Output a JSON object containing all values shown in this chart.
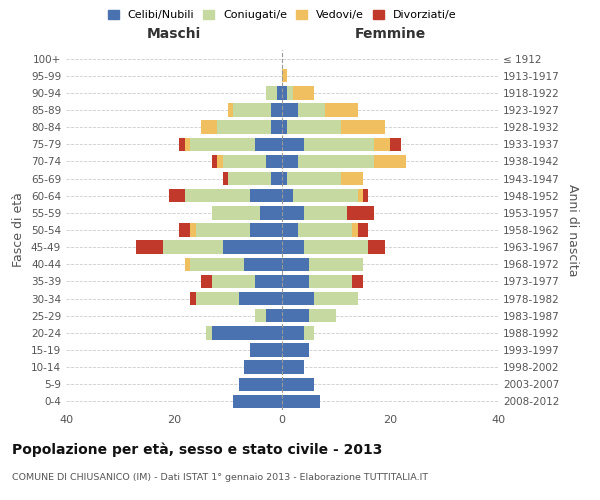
{
  "age_groups": [
    "0-4",
    "5-9",
    "10-14",
    "15-19",
    "20-24",
    "25-29",
    "30-34",
    "35-39",
    "40-44",
    "45-49",
    "50-54",
    "55-59",
    "60-64",
    "65-69",
    "70-74",
    "75-79",
    "80-84",
    "85-89",
    "90-94",
    "95-99",
    "100+"
  ],
  "birth_years": [
    "2008-2012",
    "2003-2007",
    "1998-2002",
    "1993-1997",
    "1988-1992",
    "1983-1987",
    "1978-1982",
    "1973-1977",
    "1968-1972",
    "1963-1967",
    "1958-1962",
    "1953-1957",
    "1948-1952",
    "1943-1947",
    "1938-1942",
    "1933-1937",
    "1928-1932",
    "1923-1927",
    "1918-1922",
    "1913-1917",
    "≤ 1912"
  ],
  "male_celibi": [
    9,
    8,
    7,
    6,
    13,
    3,
    8,
    5,
    7,
    11,
    6,
    4,
    6,
    2,
    3,
    5,
    2,
    2,
    1,
    0,
    0
  ],
  "male_coniugati": [
    0,
    0,
    0,
    0,
    1,
    2,
    8,
    8,
    10,
    11,
    10,
    9,
    12,
    8,
    8,
    12,
    10,
    7,
    2,
    0,
    0
  ],
  "male_vedovi": [
    0,
    0,
    0,
    0,
    0,
    0,
    0,
    0,
    1,
    0,
    1,
    0,
    0,
    0,
    1,
    1,
    3,
    1,
    0,
    0,
    0
  ],
  "male_divorziati": [
    0,
    0,
    0,
    0,
    0,
    0,
    1,
    2,
    0,
    5,
    2,
    0,
    3,
    1,
    1,
    1,
    0,
    0,
    0,
    0,
    0
  ],
  "female_celibi": [
    7,
    6,
    4,
    5,
    4,
    5,
    6,
    5,
    5,
    4,
    3,
    4,
    2,
    1,
    3,
    4,
    1,
    3,
    1,
    0,
    0
  ],
  "female_coniugati": [
    0,
    0,
    0,
    0,
    2,
    5,
    8,
    8,
    10,
    12,
    10,
    8,
    12,
    10,
    14,
    13,
    10,
    5,
    1,
    0,
    0
  ],
  "female_vedovi": [
    0,
    0,
    0,
    0,
    0,
    0,
    0,
    0,
    0,
    0,
    1,
    0,
    1,
    4,
    6,
    3,
    8,
    6,
    4,
    1,
    0
  ],
  "female_divorziati": [
    0,
    0,
    0,
    0,
    0,
    0,
    0,
    2,
    0,
    3,
    2,
    5,
    1,
    0,
    0,
    2,
    0,
    0,
    0,
    0,
    0
  ],
  "color_celibi": "#4a72b0",
  "color_coniugati": "#c5d9a0",
  "color_vedovi": "#f0c060",
  "color_divorziati": "#c0392b",
  "xlim": 40,
  "title": "Popolazione per età, sesso e stato civile - 2013",
  "subtitle": "COMUNE DI CHIUSANICO (IM) - Dati ISTAT 1° gennaio 2013 - Elaborazione TUTTITALIA.IT",
  "ylabel_left": "Fasce di età",
  "ylabel_right": "Anni di nascita",
  "xlabel_maschi": "Maschi",
  "xlabel_femmine": "Femmine"
}
